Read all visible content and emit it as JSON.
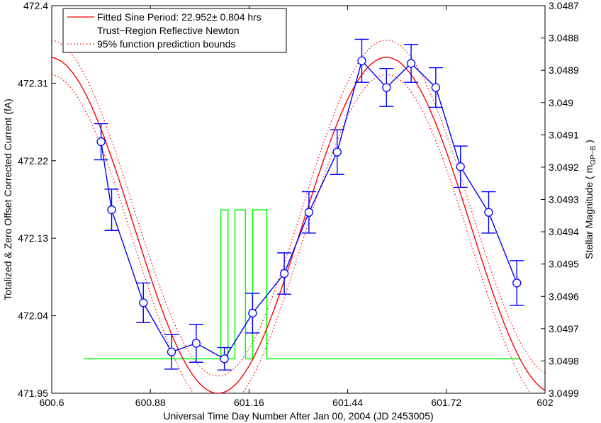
{
  "chart_data": {
    "type": "line",
    "title": "",
    "xlabel": "Universal Time Day Number After Jan 00, 2004 (JD 2453005)",
    "ylabel_left": "Totalized & Zero Offset Corrected Current (fA)",
    "ylabel_right_prefix": "Stellar Magnitude ( m",
    "ylabel_right_sub": "GP−B",
    "ylabel_right_suffix": " )",
    "xlim": [
      600.6,
      602
    ],
    "ylim_left": [
      471.95,
      472.4
    ],
    "ylim_right": [
      3.0499,
      3.0487
    ],
    "x_ticks": [
      600.6,
      600.88,
      601.16,
      601.44,
      601.72,
      602
    ],
    "x_tick_labels": [
      "600.6",
      "600.88",
      "601.16",
      "601.44",
      "601.72",
      "602"
    ],
    "y_left_ticks": [
      471.95,
      472.04,
      472.13,
      472.22,
      472.31,
      472.4
    ],
    "y_left_tick_labels": [
      "471.95",
      "472.04",
      "472.13",
      "472.22",
      "472.31",
      "472.4"
    ],
    "y_right_ticks": [
      3.0487,
      3.0488,
      3.0489,
      3.049,
      3.0491,
      3.0492,
      3.0493,
      3.0494,
      3.0495,
      3.0496,
      3.0497,
      3.0498,
      3.0499
    ],
    "y_right_tick_labels": [
      "3.0487",
      "3.0488",
      "3.0489",
      "3.049",
      "3.0491",
      "3.0492",
      "3.0493",
      "3.0494",
      "3.0495",
      "3.0496",
      "3.0497",
      "3.0498",
      "3.0499"
    ],
    "legend": {
      "placement": "top-left",
      "entries": [
        {
          "label_main": "Fitted Sine Period: 22.952",
          "label_pm": "± 0.804 hrs",
          "color": "#ff0000",
          "style": "solid"
        },
        {
          "label_main": "Trust−Region Reflective Newton",
          "label_pm": "",
          "color": "",
          "style": "none"
        },
        {
          "label_main": "95% function prediction bounds",
          "label_pm": "",
          "color": "#ff0000",
          "style": "dotted"
        }
      ]
    },
    "measurements": {
      "name": "",
      "color": "#0000ff",
      "x": [
        600.74,
        600.77,
        600.86,
        600.94,
        601.01,
        601.09,
        601.17,
        601.26,
        601.33,
        601.41,
        601.48,
        601.55,
        601.62,
        601.69,
        601.76,
        601.84,
        601.92
      ],
      "y": [
        472.242,
        472.163,
        472.055,
        471.998,
        472.008,
        471.99,
        472.043,
        472.089,
        472.16,
        472.23,
        472.336,
        472.305,
        472.333,
        472.305,
        472.213,
        472.16,
        472.078
      ],
      "err": [
        0.021,
        0.024,
        0.023,
        0.02,
        0.022,
        0.013,
        0.023,
        0.024,
        0.024,
        0.026,
        0.025,
        0.022,
        0.022,
        0.023,
        0.024,
        0.024,
        0.026
      ]
    },
    "fit": {
      "color": "#ff0000",
      "offset": 472.145,
      "amplitude": 0.195,
      "period_days": 0.9563,
      "peak_x": 601.55,
      "band_halfwidth": 0.02
    },
    "step_signal": {
      "color": "#00ff00",
      "x": [
        600.69,
        601.08,
        601.08,
        601.1,
        601.1,
        601.12,
        601.12,
        601.15,
        601.15,
        601.17,
        601.17,
        601.21,
        601.21,
        601.23,
        601.23,
        601.93
      ],
      "y": [
        471.99,
        471.99,
        472.163,
        472.163,
        471.99,
        471.99,
        472.163,
        472.163,
        471.99,
        471.99,
        472.163,
        472.163,
        471.99,
        471.99,
        471.99,
        471.99
      ]
    }
  }
}
